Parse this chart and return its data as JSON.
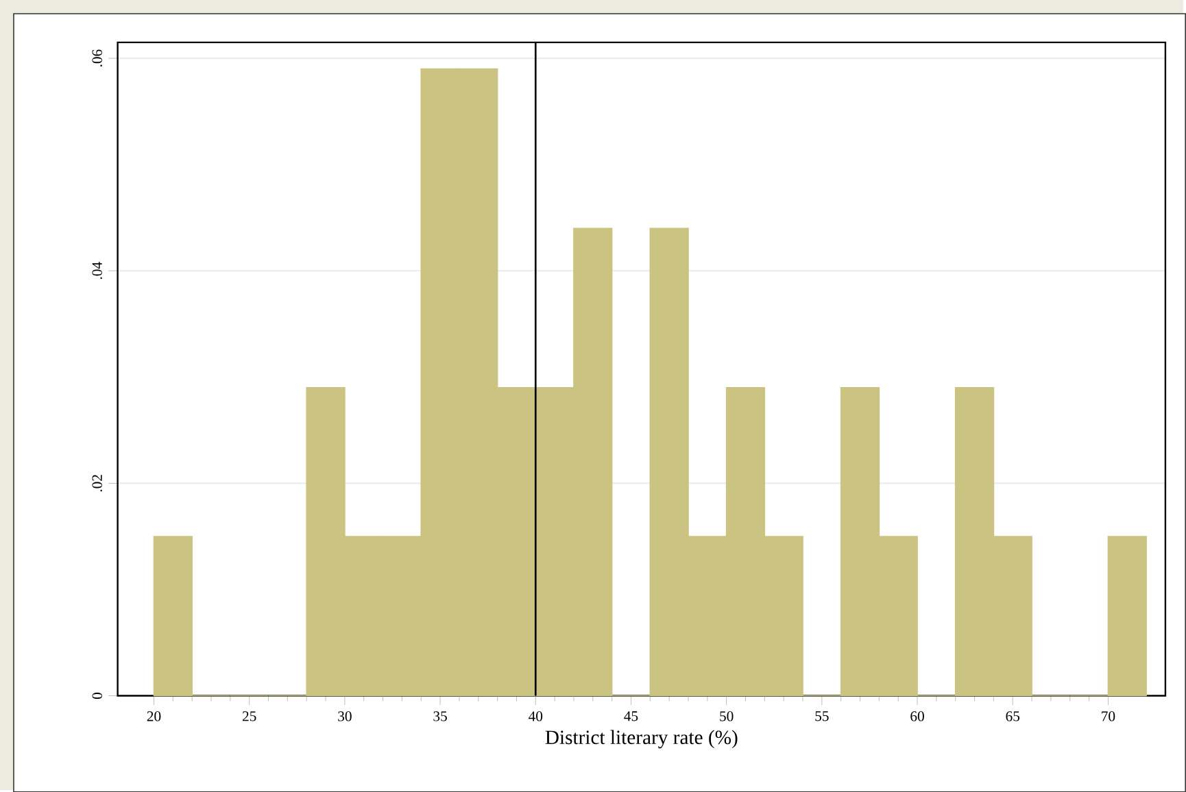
{
  "chart_data": {
    "type": "histogram",
    "xlabel": "District literary rate (%)",
    "bins": [
      20,
      22,
      24,
      26,
      28,
      30,
      32,
      34,
      36,
      38,
      40,
      42,
      44,
      46,
      48,
      50,
      52,
      54,
      56,
      58,
      60,
      62,
      64,
      66,
      68,
      70,
      72
    ],
    "values": [
      0.015,
      0,
      0,
      0,
      0.029,
      0.015,
      0.015,
      0.059,
      0.059,
      0.029,
      0.029,
      0.044,
      0,
      0.044,
      0.015,
      0.029,
      0.015,
      0,
      0.029,
      0.015,
      0,
      0.029,
      0.015,
      0,
      0,
      0.015
    ],
    "color": "#cbc382",
    "xlim": [
      18.1,
      73
    ],
    "ylim": [
      0,
      0.0615
    ],
    "xticks": [
      20,
      25,
      30,
      35,
      40,
      45,
      50,
      55,
      60,
      65,
      70
    ],
    "yticks": [
      0,
      {
        "value": 0.02,
        "label": ".02"
      },
      {
        "value": 0.04,
        "label": ".04"
      },
      {
        "value": 0.06,
        "label": ".06"
      }
    ],
    "grid": "y",
    "ref_lines": [
      {
        "axis": "x",
        "value": 40,
        "color": "#000000"
      }
    ]
  }
}
